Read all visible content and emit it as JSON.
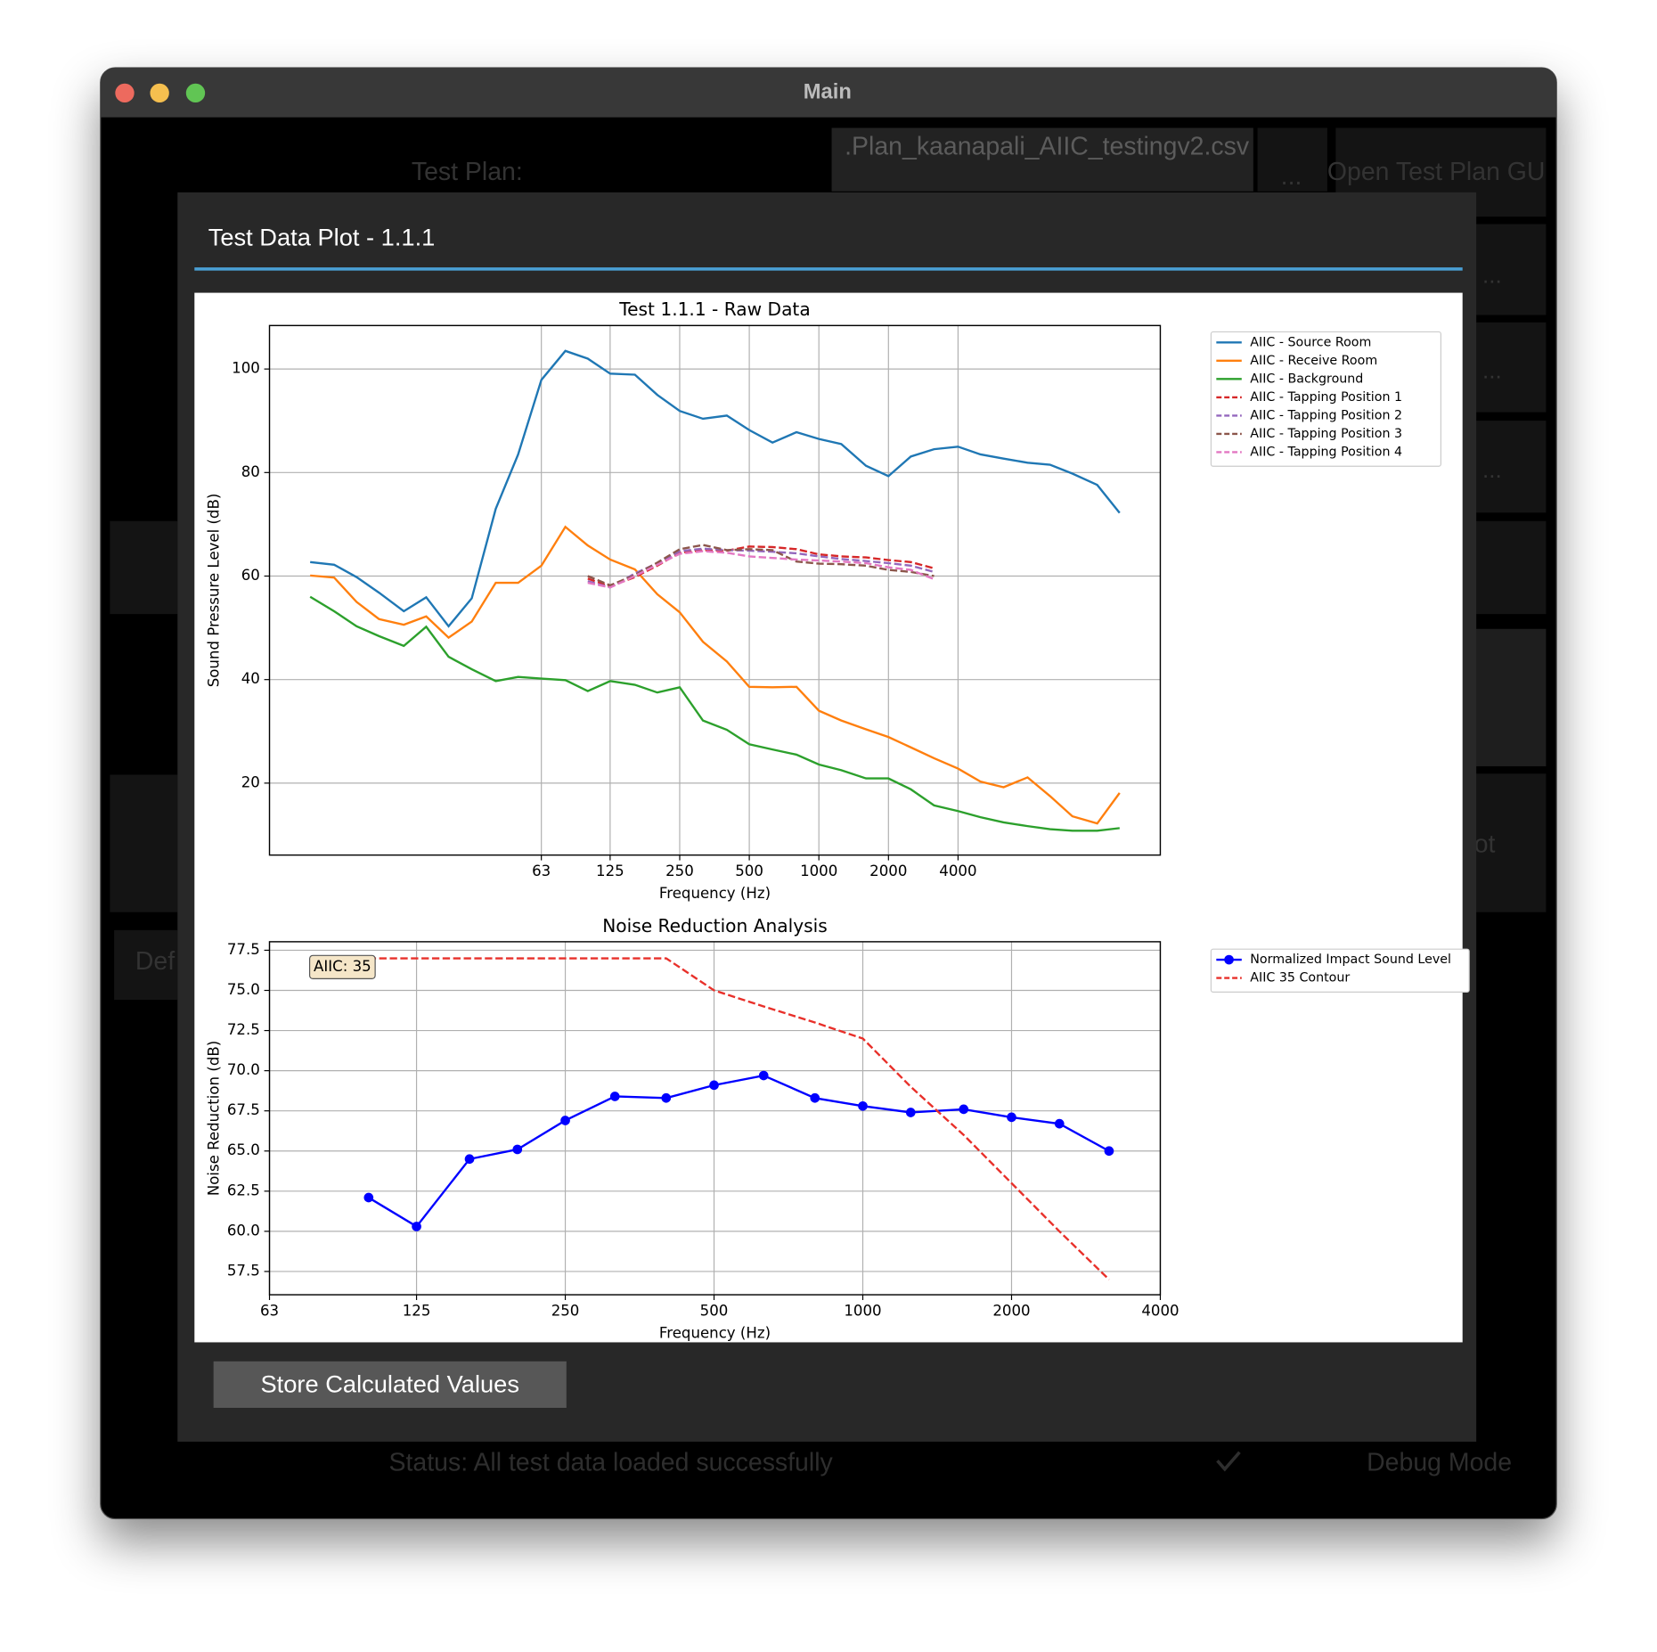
{
  "window": {
    "title": "Main"
  },
  "background": {
    "test_plan_label": "Test Plan:",
    "test_plan_file": ".Plan_kaanapali_AIIC_testingv2.csv",
    "browse_button": "...",
    "open_gui_button": "Open Test Plan GUI",
    "row_buttons": [
      "...",
      "...",
      "..."
    ],
    "partial_left": "Def",
    "partial_right": "ot",
    "status": "Status: All test data loaded successfully",
    "debug_mode": "Debug Mode"
  },
  "dialog": {
    "title": "Test Data Plot - 1.1.1",
    "button": "Store Calculated Values"
  },
  "chart_data": [
    {
      "type": "line",
      "title": "Test 1.1.1 - Raw Data",
      "x_label": "Frequency (Hz)",
      "y_label": "Sound Pressure Level (dB)",
      "log_x": true,
      "grid": true,
      "legend": "outside upper right",
      "x": [
        6.3,
        8,
        10,
        12.5,
        16,
        20,
        25,
        31.5,
        40,
        50,
        63,
        80,
        100,
        125,
        160,
        200,
        250,
        315,
        400,
        500,
        630,
        800,
        1000,
        1250,
        1600,
        2000,
        2500,
        3150,
        4000,
        5000,
        6300,
        8000,
        10000,
        12500,
        16000,
        20000
      ],
      "xlim": [
        4.2,
        30000
      ],
      "xticks": [
        63,
        125,
        250,
        500,
        1000,
        2000,
        4000
      ],
      "ylim": [
        6.1,
        108.4
      ],
      "yticks": [
        20,
        40,
        60,
        80,
        100
      ],
      "series": [
        {
          "name": "AIIC - Source Room",
          "color": "#1f77b4",
          "linestyle": "solid",
          "values": [
            62.7,
            62.2,
            59.8,
            56.8,
            53.2,
            55.9,
            50.3,
            55.7,
            73,
            83.5,
            97.9,
            103.5,
            102,
            99.1,
            98.9,
            95,
            91.9,
            90.4,
            91,
            88.2,
            85.8,
            87.8,
            86.5,
            85.5,
            81.3,
            79.3,
            83.1,
            84.5,
            85,
            83.5,
            82.7,
            81.9,
            81.5,
            79.8,
            77.6,
            72.2
          ]
        },
        {
          "name": "AIIC - Receive Room",
          "color": "#ff7f0e",
          "linestyle": "solid",
          "values": [
            60.1,
            59.7,
            55,
            51.7,
            50.6,
            52.2,
            48.1,
            51.2,
            58.7,
            58.7,
            62,
            69.5,
            65.9,
            63.2,
            61.3,
            56.5,
            53,
            47.3,
            43.5,
            38.6,
            38.5,
            38.6,
            34,
            32.1,
            30.4,
            28.9,
            26.9,
            24.8,
            22.8,
            20.3,
            19.2,
            21.1,
            17.5,
            13.6,
            12.2,
            18.1
          ]
        },
        {
          "name": "AIIC - Background",
          "color": "#2ca02c",
          "linestyle": "solid",
          "values": [
            56,
            53.2,
            50.3,
            48.4,
            46.5,
            50.2,
            44.4,
            42,
            39.7,
            40.5,
            40.2,
            39.9,
            37.8,
            39.7,
            39,
            37.5,
            38.5,
            32.1,
            30.3,
            27.5,
            26.5,
            25.5,
            23.6,
            22.5,
            20.9,
            20.9,
            18.8,
            15.7,
            14.6,
            13.4,
            12.4,
            11.7,
            11.1,
            10.8,
            10.8,
            11.3
          ]
        },
        {
          "name": "AIIC - Tapping Position 1",
          "color": "#d62728",
          "linestyle": "dashed",
          "values": [
            null,
            null,
            null,
            null,
            null,
            null,
            null,
            null,
            null,
            null,
            null,
            null,
            59.5,
            58,
            59.8,
            62,
            64.5,
            65,
            64.9,
            65.7,
            65.6,
            65.2,
            64.2,
            63.8,
            63.6,
            63.1,
            62.7,
            61.5,
            null,
            null,
            null,
            null,
            null,
            null,
            null,
            null
          ]
        },
        {
          "name": "AIIC - Tapping Position 2",
          "color": "#9467bd",
          "linestyle": "dashed",
          "values": [
            null,
            null,
            null,
            null,
            null,
            null,
            null,
            null,
            null,
            null,
            null,
            null,
            59,
            57.8,
            60.5,
            62.5,
            64.8,
            65.3,
            65,
            64.9,
            64.7,
            64.4,
            63.8,
            63.3,
            62.9,
            62.5,
            62,
            60.8,
            null,
            null,
            null,
            null,
            null,
            null,
            null,
            null
          ]
        },
        {
          "name": "AIIC - Tapping Position 3",
          "color": "#8c564b",
          "linestyle": "dashed",
          "values": [
            null,
            null,
            null,
            null,
            null,
            null,
            null,
            null,
            null,
            null,
            null,
            null,
            60,
            58.2,
            60.2,
            62.6,
            65.2,
            66,
            65,
            65.2,
            65,
            62.8,
            62.4,
            62.3,
            62,
            61.2,
            60.8,
            60,
            null,
            null,
            null,
            null,
            null,
            null,
            null,
            null
          ]
        },
        {
          "name": "AIIC - Tapping Position 4",
          "color": "#e377c2",
          "linestyle": "dashed",
          "values": [
            null,
            null,
            null,
            null,
            null,
            null,
            null,
            null,
            null,
            null,
            null,
            null,
            58.7,
            57.8,
            60,
            62.2,
            64.3,
            64.8,
            64.5,
            63.8,
            63.5,
            63.2,
            63,
            62.8,
            62.5,
            61.7,
            61.2,
            59.4,
            null,
            null,
            null,
            null,
            null,
            null,
            null,
            null
          ]
        }
      ]
    },
    {
      "type": "line",
      "title": "Noise Reduction Analysis",
      "x_label": "Frequency (Hz)",
      "y_label": "Noise Reduction (dB)",
      "log_x": true,
      "grid": true,
      "legend": "outside upper right",
      "annotation": "AIIC: 35",
      "x": [
        100,
        125,
        160,
        200,
        250,
        315,
        400,
        500,
        630,
        800,
        1000,
        1250,
        1600,
        2000,
        2500,
        3150
      ],
      "xlim": [
        63,
        4000
      ],
      "xticks": [
        63,
        125,
        250,
        500,
        1000,
        2000,
        4000
      ],
      "ylim": [
        56.05,
        78.03
      ],
      "yticks": [
        57.5,
        {
          "value": 60,
          "label": "60.0"
        },
        62.5,
        {
          "value": 65,
          "label": "65.0"
        },
        67.5,
        {
          "value": 70,
          "label": "70.0"
        },
        72.5,
        {
          "value": 75,
          "label": "75.0"
        },
        77.5
      ],
      "series": [
        {
          "name": "Normalized Impact Sound Level",
          "color": "#0000ff",
          "linestyle": "solid",
          "marker": "o",
          "values": [
            62.1,
            60.3,
            64.5,
            65.1,
            66.9,
            68.4,
            68.3,
            69.1,
            69.7,
            68.3,
            67.8,
            67.4,
            67.6,
            67.1,
            66.7,
            65
          ]
        },
        {
          "name": "AIIC 35 Contour",
          "color": "#e8302a",
          "linestyle": "dashed",
          "values": [
            77,
            77,
            77,
            77,
            77,
            77,
            77,
            75,
            74,
            73,
            72,
            69,
            66,
            63,
            60,
            57
          ]
        }
      ]
    }
  ]
}
